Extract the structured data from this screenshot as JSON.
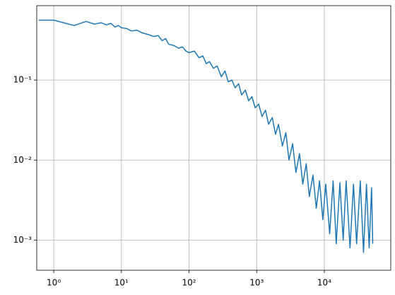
{
  "chart_data": {
    "type": "line",
    "x": [
      0.6,
      1,
      2,
      3,
      4,
      5,
      6,
      7,
      8,
      9,
      10,
      12,
      14,
      17,
      20,
      25,
      30,
      35,
      40,
      45,
      50,
      60,
      70,
      80,
      90,
      100,
      120,
      140,
      160,
      180,
      200,
      230,
      260,
      300,
      340,
      380,
      430,
      480,
      540,
      600,
      680,
      760,
      850,
      950,
      1070,
      1200,
      1350,
      1500,
      1700,
      1900,
      2100,
      2400,
      2700,
      3000,
      3400,
      3800,
      4300,
      4800,
      5400,
      6000,
      6800,
      7600,
      8500,
      9500,
      10500,
      12000,
      13500,
      15000,
      17000,
      19000,
      21000,
      24000,
      27000,
      30000,
      34000,
      38000,
      42000,
      46000,
      50000,
      52000
    ],
    "series": [
      {
        "color": "#1f77b4",
        "values": [
          0.56,
          0.56,
          0.48,
          0.54,
          0.5,
          0.52,
          0.49,
          0.51,
          0.46,
          0.48,
          0.45,
          0.44,
          0.41,
          0.42,
          0.39,
          0.37,
          0.35,
          0.36,
          0.31,
          0.33,
          0.28,
          0.27,
          0.25,
          0.26,
          0.23,
          0.22,
          0.23,
          0.19,
          0.2,
          0.16,
          0.17,
          0.14,
          0.15,
          0.11,
          0.13,
          0.095,
          0.1,
          0.08,
          0.09,
          0.065,
          0.075,
          0.055,
          0.062,
          0.045,
          0.05,
          0.035,
          0.042,
          0.028,
          0.034,
          0.021,
          0.028,
          0.015,
          0.022,
          0.01,
          0.016,
          0.007,
          0.012,
          0.005,
          0.009,
          0.0035,
          0.0065,
          0.0025,
          0.0055,
          0.0018,
          0.005,
          0.0012,
          0.0055,
          0.0009,
          0.0052,
          0.001,
          0.0055,
          0.0008,
          0.005,
          0.0009,
          0.0055,
          0.0007,
          0.005,
          0.0008,
          0.0045,
          0.0009
        ]
      }
    ],
    "xscale": "log",
    "yscale": "log",
    "xlim": [
      0.56,
      96000
    ],
    "ylim": [
      0.00042,
      0.85
    ],
    "xticks": [
      {
        "value": 1,
        "label": "10⁰"
      },
      {
        "value": 10,
        "label": "10¹"
      },
      {
        "value": 100,
        "label": "10²"
      },
      {
        "value": 1000,
        "label": "10³"
      },
      {
        "value": 10000,
        "label": "10⁴"
      }
    ],
    "yticks": [
      {
        "value": 0.001,
        "label": "10⁻³"
      },
      {
        "value": 0.01,
        "label": "10⁻²"
      },
      {
        "value": 0.1,
        "label": "10⁻¹"
      }
    ],
    "grid": true
  }
}
